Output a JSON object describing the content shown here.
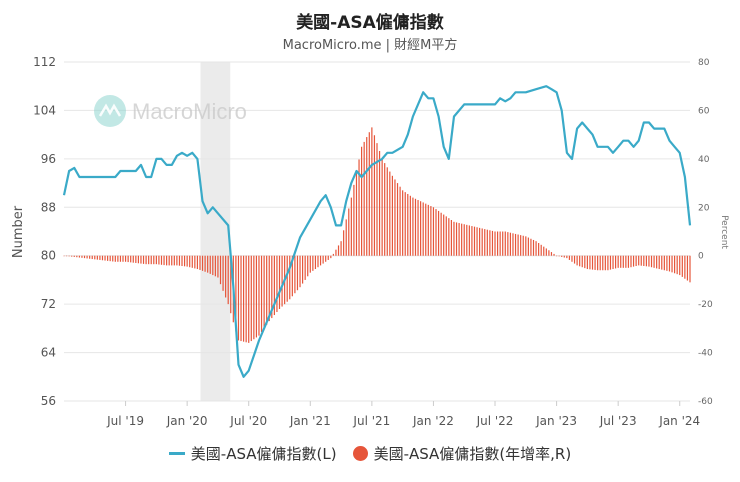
{
  "title": "美國-ASA僱傭指數",
  "subtitle": "MacroMicro.me | 財經M平方",
  "watermark": "MacroMicro",
  "colors": {
    "line": "#3aaac8",
    "bar": "#e6553a",
    "recession": "#ebebeb",
    "grid": "#e6e6e6"
  },
  "chart_data": {
    "type": "line",
    "ylabel_left": "Number",
    "ylabel_right": "Percent",
    "y_left_ticks": [
      "56",
      "64",
      "72",
      "80",
      "88",
      "96",
      "104",
      "112"
    ],
    "y_right_ticks": [
      "-60",
      "-40",
      "-20",
      "0",
      "20",
      "40",
      "60",
      "80"
    ],
    "ylim_left": [
      56,
      112
    ],
    "ylim_right": [
      -60,
      80
    ],
    "x_ticks": [
      "Jul '19",
      "Jan '20",
      "Jul '20",
      "Jan '21",
      "Jul '21",
      "Jan '22",
      "Jul '22",
      "Jan '23",
      "Jul '23",
      "Jan '24"
    ],
    "x_range": [
      "2019-01",
      "2024-02"
    ],
    "recession_band": [
      "2020-02",
      "2020-05"
    ],
    "legend": [
      {
        "label": "美國-ASA僱傭指數(L)",
        "marker": "line"
      },
      {
        "label": "美國-ASA僱傭指數(年增率,R)",
        "marker": "dot"
      }
    ],
    "series_line_points": [
      [
        "2019-01",
        90
      ],
      [
        "2019-01",
        94
      ],
      [
        "2019-02",
        94.5
      ],
      [
        "2019-02",
        93
      ],
      [
        "2019-03",
        93
      ],
      [
        "2019-04",
        93
      ],
      [
        "2019-05",
        93
      ],
      [
        "2019-06",
        93
      ],
      [
        "2019-06",
        94
      ],
      [
        "2019-07",
        94
      ],
      [
        "2019-08",
        94
      ],
      [
        "2019-08",
        95
      ],
      [
        "2019-09",
        93
      ],
      [
        "2019-09",
        93
      ],
      [
        "2019-10",
        96
      ],
      [
        "2019-10",
        96
      ],
      [
        "2019-11",
        95
      ],
      [
        "2019-11",
        95
      ],
      [
        "2019-12",
        96.5
      ],
      [
        "2019-12",
        97
      ],
      [
        "2020-01",
        96.5
      ],
      [
        "2020-01",
        97
      ],
      [
        "2020-02",
        96
      ],
      [
        "2020-02",
        89
      ],
      [
        "2020-03",
        87
      ],
      [
        "2020-03",
        88
      ],
      [
        "2020-04",
        87
      ],
      [
        "2020-05",
        85
      ],
      [
        "2020-05",
        75
      ],
      [
        "2020-06",
        62
      ],
      [
        "2020-06",
        60
      ],
      [
        "2020-07",
        61
      ],
      [
        "2020-08",
        66
      ],
      [
        "2020-09",
        70
      ],
      [
        "2020-10",
        74
      ],
      [
        "2020-11",
        78
      ],
      [
        "2020-12",
        83
      ],
      [
        "2021-01",
        86
      ],
      [
        "2021-02",
        89
      ],
      [
        "2021-02",
        90
      ],
      [
        "2021-03",
        88
      ],
      [
        "2021-03",
        85
      ],
      [
        "2021-04",
        85
      ],
      [
        "2021-04",
        89
      ],
      [
        "2021-05",
        92
      ],
      [
        "2021-05",
        94
      ],
      [
        "2021-06",
        93
      ],
      [
        "2021-07",
        95
      ],
      [
        "2021-08",
        96
      ],
      [
        "2021-08",
        97
      ],
      [
        "2021-09",
        97
      ],
      [
        "2021-10",
        98
      ],
      [
        "2021-10",
        100
      ],
      [
        "2021-11",
        103
      ],
      [
        "2021-12",
        107
      ],
      [
        "2021-12",
        106
      ],
      [
        "2022-01",
        106
      ],
      [
        "2022-01",
        103
      ],
      [
        "2022-02",
        98
      ],
      [
        "2022-02",
        96
      ],
      [
        "2022-03",
        103
      ],
      [
        "2022-04",
        105
      ],
      [
        "2022-05",
        105
      ],
      [
        "2022-06",
        105
      ],
      [
        "2022-06",
        105
      ],
      [
        "2022-07",
        105
      ],
      [
        "2022-07",
        106
      ],
      [
        "2022-08",
        105.5
      ],
      [
        "2022-08",
        106
      ],
      [
        "2022-09",
        107
      ],
      [
        "2022-10",
        107
      ],
      [
        "2022-11",
        107.5
      ],
      [
        "2022-12",
        108
      ],
      [
        "2022-12",
        107.5
      ],
      [
        "2023-01",
        107
      ],
      [
        "2023-01",
        104
      ],
      [
        "2023-02",
        97
      ],
      [
        "2023-02",
        96
      ],
      [
        "2023-03",
        101
      ],
      [
        "2023-03",
        102
      ],
      [
        "2023-04",
        101
      ],
      [
        "2023-04",
        100
      ],
      [
        "2023-05",
        98
      ],
      [
        "2023-06",
        98
      ],
      [
        "2023-06",
        97
      ],
      [
        "2023-07",
        98
      ],
      [
        "2023-07",
        99
      ],
      [
        "2023-08",
        99
      ],
      [
        "2023-08",
        98
      ],
      [
        "2023-09",
        99
      ],
      [
        "2023-09",
        102
      ],
      [
        "2023-10",
        102
      ],
      [
        "2023-10",
        101
      ],
      [
        "2023-11",
        101
      ],
      [
        "2023-11",
        101
      ],
      [
        "2023-12",
        99
      ],
      [
        "2023-12",
        98
      ],
      [
        "2024-01",
        97
      ],
      [
        "2024-01",
        93
      ],
      [
        "2024-02",
        85
      ]
    ],
    "series_bar_points": [
      [
        "2019-01",
        0
      ],
      [
        "2019-02",
        -0.5
      ],
      [
        "2019-03",
        -1
      ],
      [
        "2019-04",
        -1.5
      ],
      [
        "2019-05",
        -2
      ],
      [
        "2019-06",
        -2.5
      ],
      [
        "2019-07",
        -2.5
      ],
      [
        "2019-08",
        -3
      ],
      [
        "2019-09",
        -3.5
      ],
      [
        "2019-10",
        -3.5
      ],
      [
        "2019-11",
        -4
      ],
      [
        "2019-12",
        -4
      ],
      [
        "2020-01",
        -4.5
      ],
      [
        "2020-02",
        -5.5
      ],
      [
        "2020-03",
        -7
      ],
      [
        "2020-04",
        -9
      ],
      [
        "2020-05",
        -20
      ],
      [
        "2020-06",
        -35
      ],
      [
        "2020-07",
        -36
      ],
      [
        "2020-08",
        -33
      ],
      [
        "2020-09",
        -27
      ],
      [
        "2020-10",
        -22
      ],
      [
        "2020-11",
        -18
      ],
      [
        "2020-12",
        -13
      ],
      [
        "2021-01",
        -7
      ],
      [
        "2021-02",
        -4
      ],
      [
        "2021-03",
        -1
      ],
      [
        "2021-04",
        6
      ],
      [
        "2021-05",
        24
      ],
      [
        "2021-06",
        45
      ],
      [
        "2021-07",
        53
      ],
      [
        "2021-08",
        40
      ],
      [
        "2021-09",
        33
      ],
      [
        "2021-10",
        27
      ],
      [
        "2021-11",
        24
      ],
      [
        "2021-12",
        22
      ],
      [
        "2022-01",
        20
      ],
      [
        "2022-02",
        17
      ],
      [
        "2022-03",
        14
      ],
      [
        "2022-04",
        13
      ],
      [
        "2022-05",
        12
      ],
      [
        "2022-06",
        11
      ],
      [
        "2022-07",
        10
      ],
      [
        "2022-08",
        10
      ],
      [
        "2022-09",
        9
      ],
      [
        "2022-10",
        8
      ],
      [
        "2022-11",
        6
      ],
      [
        "2022-12",
        3
      ],
      [
        "2023-01",
        0
      ],
      [
        "2023-02",
        -1
      ],
      [
        "2023-03",
        -4
      ],
      [
        "2023-04",
        -5.5
      ],
      [
        "2023-05",
        -6
      ],
      [
        "2023-06",
        -6
      ],
      [
        "2023-07",
        -5
      ],
      [
        "2023-08",
        -5
      ],
      [
        "2023-09",
        -4
      ],
      [
        "2023-10",
        -4.5
      ],
      [
        "2023-11",
        -5.5
      ],
      [
        "2023-12",
        -6.5
      ],
      [
        "2024-01",
        -8
      ],
      [
        "2024-02",
        -11
      ]
    ]
  }
}
